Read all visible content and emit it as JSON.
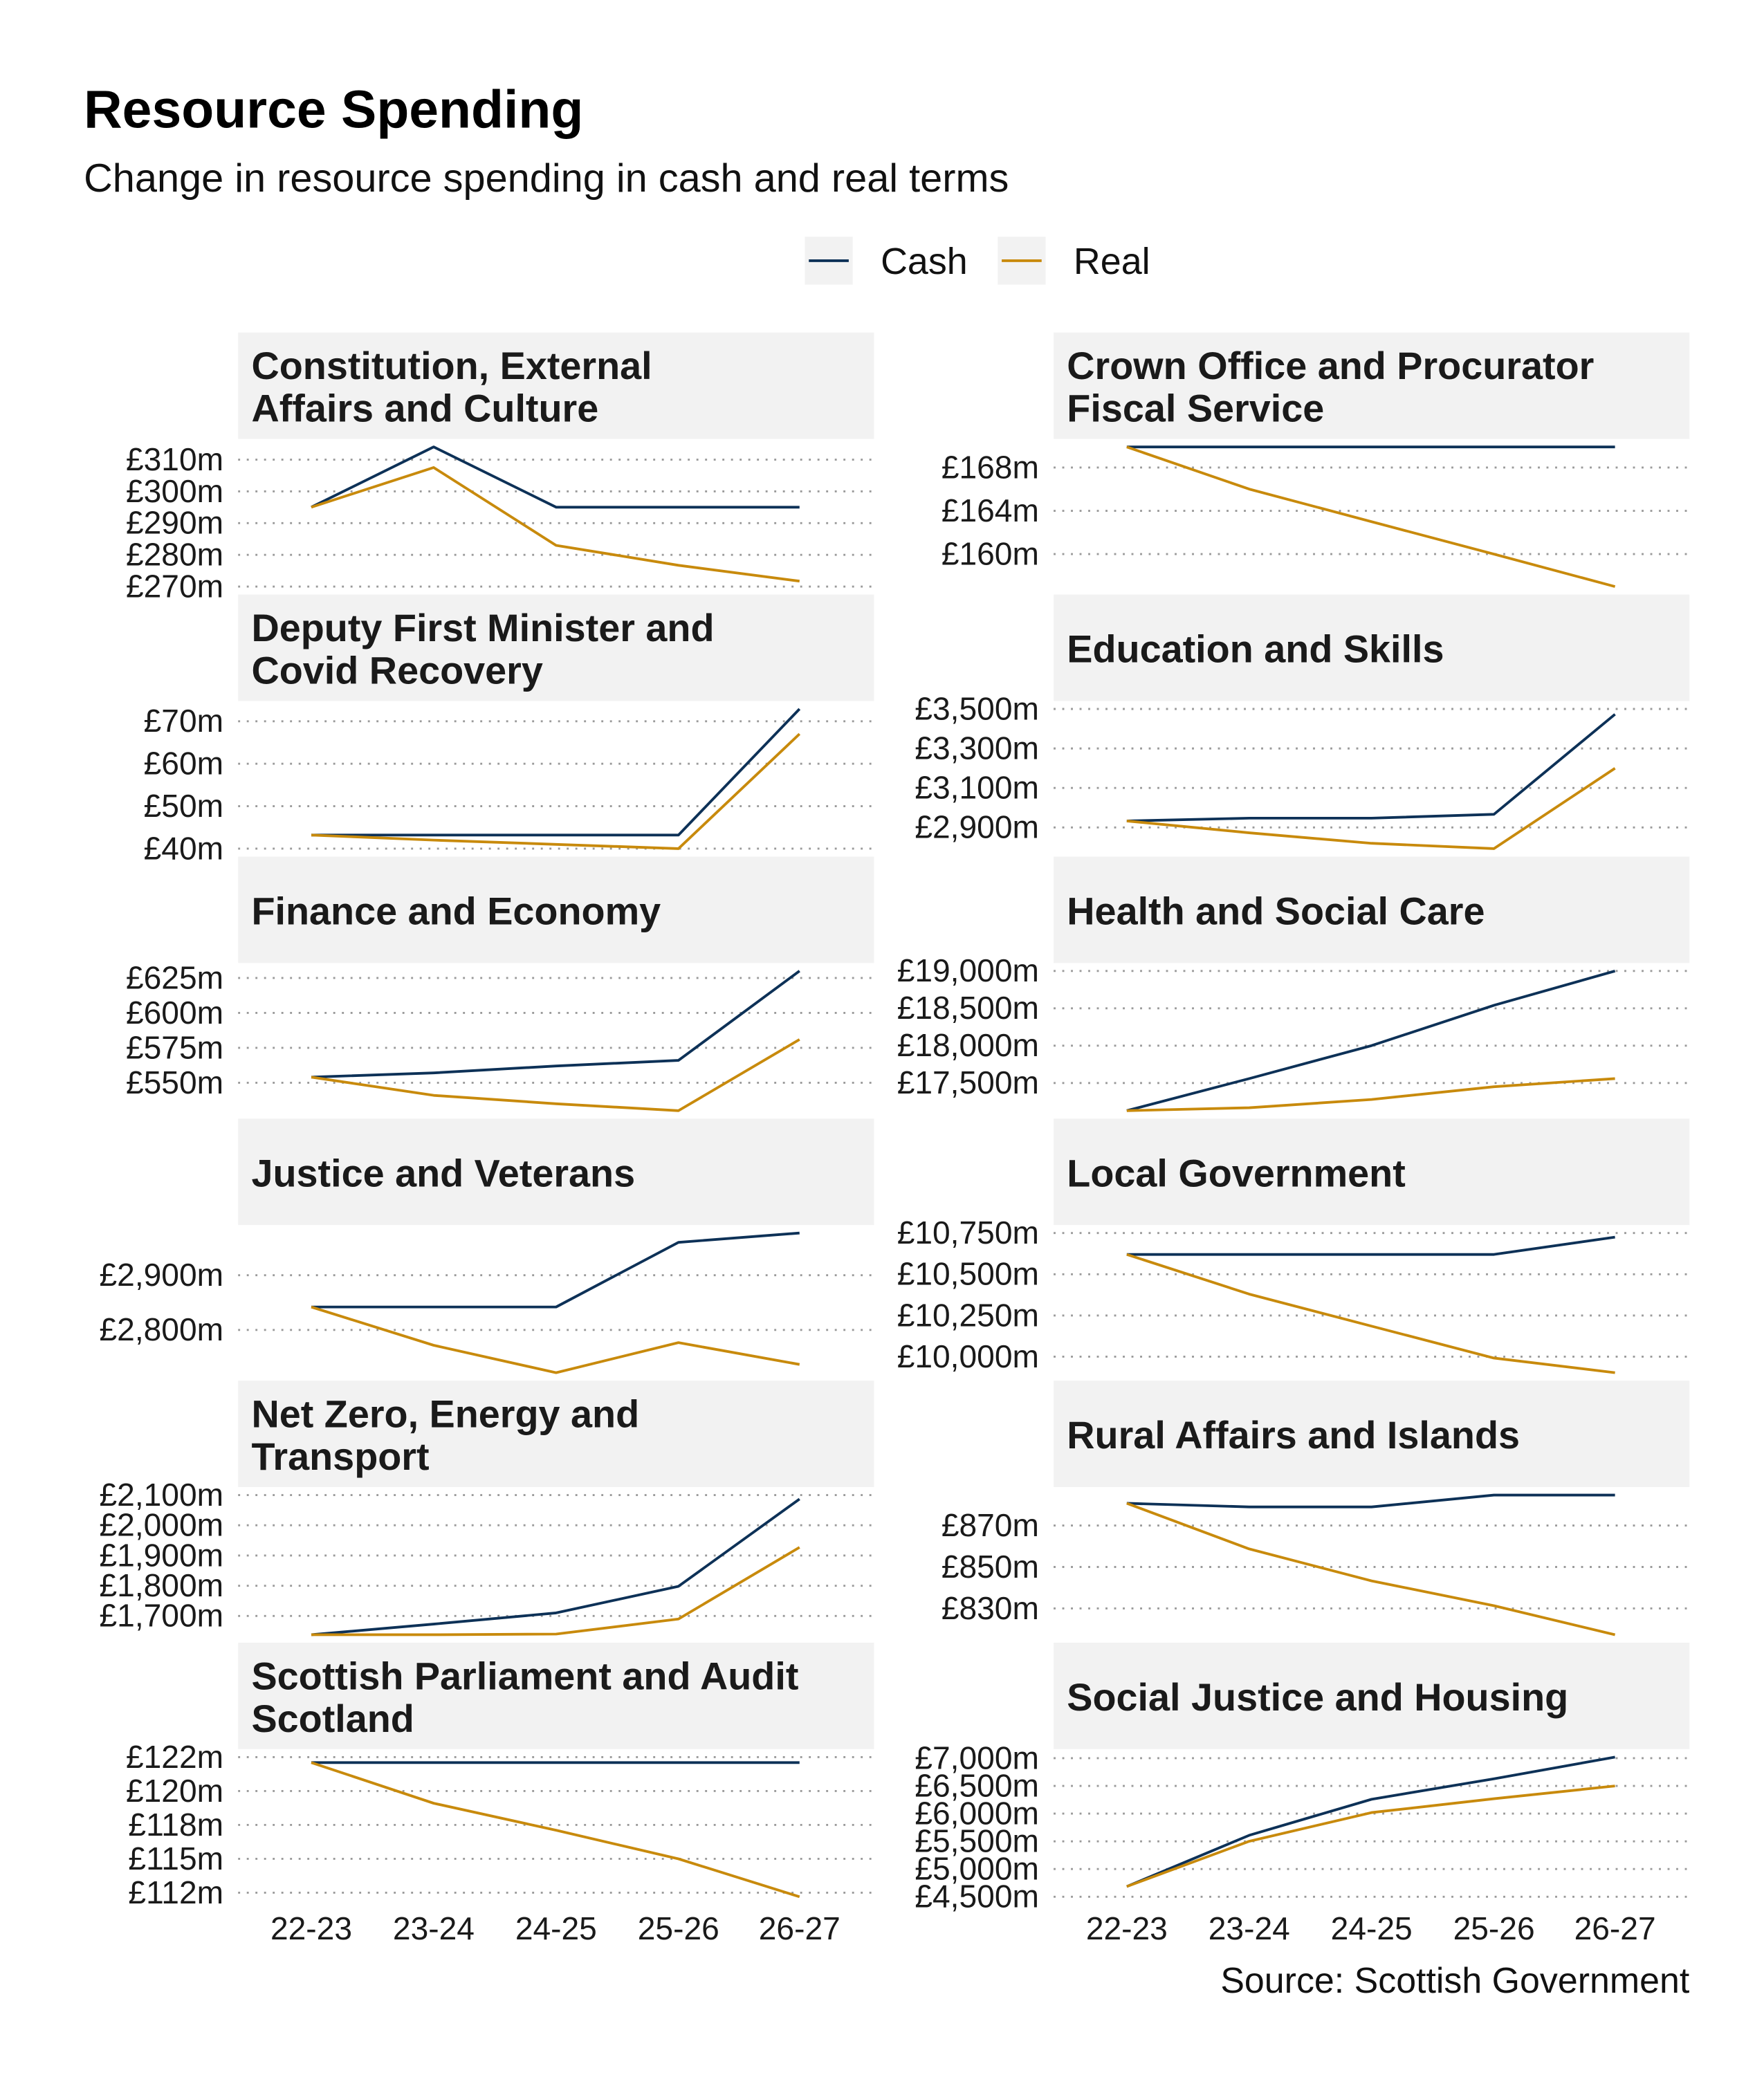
{
  "chart_data": {
    "type": "line",
    "title": "Resource Spending",
    "subtitle": "Change in resource spending in cash and real terms",
    "source": "Source: Scottish Government",
    "legend": {
      "placement": "top",
      "entries": [
        "Cash",
        "Real"
      ]
    },
    "colors": {
      "Cash": "#0d3157",
      "Real": "#c88a0c",
      "strip": "#f2f2f2",
      "grid": "#9a9a9a"
    },
    "grid": "horizontal dotted",
    "x": [
      "22-23",
      "23-24",
      "24-25",
      "25-26",
      "26-27"
    ],
    "panels": [
      {
        "title": "Constitution, External Affairs and Culture",
        "yticks": [
          270,
          280,
          290,
          300,
          310
        ],
        "ytick_labels": [
          "£270m",
          "£280m",
          "£290m",
          "£300m",
          "£310m"
        ],
        "series": [
          {
            "name": "Cash",
            "values": [
              295,
              314,
              295,
              295,
              295
            ]
          },
          {
            "name": "Real",
            "values": [
              295,
              307.5,
              283,
              276.7,
              271.7
            ]
          }
        ]
      },
      {
        "title": "Crown Office and Procurator Fiscal Service",
        "yticks": [
          160,
          164,
          168
        ],
        "ytick_labels": [
          "£160m",
          "£164m",
          "£168m"
        ],
        "series": [
          {
            "name": "Cash",
            "values": [
              169.9,
              169.9,
              169.9,
              169.9,
              169.9
            ]
          },
          {
            "name": "Real",
            "values": [
              169.9,
              166,
              163,
              160,
              157
            ]
          }
        ]
      },
      {
        "title": "Deputy First Minister and Covid Recovery",
        "yticks": [
          40,
          50,
          60,
          70
        ],
        "ytick_labels": [
          "£40m",
          "£50m",
          "£60m",
          "£70m"
        ],
        "series": [
          {
            "name": "Cash",
            "values": [
              43.2,
              43.2,
              43.2,
              43.2,
              72.9
            ]
          },
          {
            "name": "Real",
            "values": [
              43.2,
              42,
              41,
              40,
              67
            ]
          }
        ]
      },
      {
        "title": "Education and Skills",
        "yticks": [
          2900,
          3100,
          3300,
          3500
        ],
        "ytick_labels": [
          "£2,900m",
          "£3,100m",
          "£3,300m",
          "£3,500m"
        ],
        "series": [
          {
            "name": "Cash",
            "values": [
              2933,
              2947,
              2947,
              2967,
              3473
            ]
          },
          {
            "name": "Real",
            "values": [
              2933,
              2873,
              2820,
              2793,
              3200
            ]
          }
        ]
      },
      {
        "title": "Finance and Economy",
        "yticks": [
          550,
          575,
          600,
          625
        ],
        "ytick_labels": [
          "£550m",
          "£575m",
          "£600m",
          "£625m"
        ],
        "series": [
          {
            "name": "Cash",
            "values": [
              554,
              557,
              562,
              566,
              630
            ]
          },
          {
            "name": "Real",
            "values": [
              554,
              541,
              535,
              530,
              581
            ]
          }
        ]
      },
      {
        "title": "Health and Social Care",
        "yticks": [
          17500,
          18000,
          18500,
          19000
        ],
        "ytick_labels": [
          "£17,500m",
          "£18,000m",
          "£18,500m",
          "£19,000m"
        ],
        "series": [
          {
            "name": "Cash",
            "values": [
              17130,
              17560,
              18000,
              18540,
              19000
            ]
          },
          {
            "name": "Real",
            "values": [
              17130,
              17170,
              17280,
              17450,
              17560
            ]
          }
        ]
      },
      {
        "title": "Justice and Veterans",
        "yticks": [
          2800,
          2900
        ],
        "ytick_labels": [
          "£2,800m",
          "£2,900m"
        ],
        "series": [
          {
            "name": "Cash",
            "values": [
              2842,
              2842,
              2842,
              2960,
              2977
            ]
          },
          {
            "name": "Real",
            "values": [
              2842,
              2772,
              2722,
              2777,
              2737
            ]
          }
        ]
      },
      {
        "title": "Local Government",
        "yticks": [
          10000,
          10250,
          10500,
          10750
        ],
        "ytick_labels": [
          "£10,000m",
          "£10,250m",
          "£10,500m",
          "£10,750m"
        ],
        "series": [
          {
            "name": "Cash",
            "values": [
              10620,
              10620,
              10620,
              10620,
              10725
            ]
          },
          {
            "name": "Real",
            "values": [
              10620,
              10380,
              10185,
              9992,
              9903
            ]
          }
        ]
      },
      {
        "title": "Net Zero, Energy and Transport",
        "yticks": [
          1700,
          1800,
          1900,
          2000,
          2100
        ],
        "ytick_labels": [
          "£1,700m",
          "£1,800m",
          "£1,900m",
          "£2,000m",
          "£2,100m"
        ],
        "series": [
          {
            "name": "Cash",
            "values": [
              1638,
              1673,
              1710,
              1798,
              2087
            ]
          },
          {
            "name": "Real",
            "values": [
              1638,
              1638,
              1640,
              1690,
              1927
            ]
          }
        ]
      },
      {
        "title": "Rural Affairs and Islands",
        "yticks": [
          830,
          850,
          870
        ],
        "ytick_labels": [
          "£830m",
          "£850m",
          "£870m"
        ],
        "series": [
          {
            "name": "Cash",
            "values": [
              880.7,
              879,
              879,
              884.7,
              884.7
            ]
          },
          {
            "name": "Real",
            "values": [
              880.7,
              858.7,
              843.3,
              831.3,
              817.3
            ]
          }
        ]
      },
      {
        "title": "Scottish Parliament and Audit Scotland",
        "yticks": [
          112.5,
          115,
          117.5,
          120,
          122.5
        ],
        "ytick_labels": [
          "£112m",
          "£115m",
          "£118m",
          "£120m",
          "£122m"
        ],
        "series": [
          {
            "name": "Cash",
            "values": [
              122.1,
              122.1,
              122.1,
              122.1,
              122.1
            ]
          },
          {
            "name": "Real",
            "values": [
              122.1,
              119.1,
              117.1,
              115,
              112.2
            ]
          }
        ]
      },
      {
        "title": "Social Justice and Housing",
        "yticks": [
          4500,
          5000,
          5500,
          6000,
          6500,
          7000
        ],
        "ytick_labels": [
          "£4,500m",
          "£5,000m",
          "£5,500m",
          "£6,000m",
          "£6,500m",
          "£7,000m"
        ],
        "series": [
          {
            "name": "Cash",
            "values": [
              4685,
              5610,
              6260,
              6630,
              7020
            ]
          },
          {
            "name": "Real",
            "values": [
              4685,
              5500,
              6020,
              6270,
              6500
            ]
          }
        ]
      }
    ]
  }
}
